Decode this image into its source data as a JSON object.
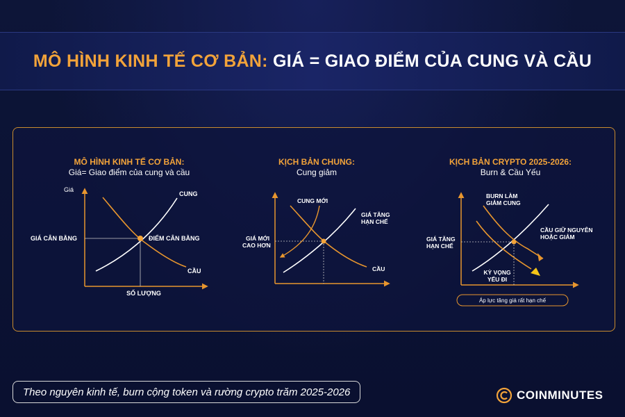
{
  "header": {
    "title_part1": "MÔ HÌNH KINH TẾ CƠ BẢN:",
    "title_part2": "GIÁ = GIAO ĐIỂM CỦA CUNG VÀ CẦU"
  },
  "diagram1": {
    "heading": "MÔ HÌNH KINH TẾ CƠ BẢN:",
    "subheading": "Giá= Giao điểm của cung và cầu",
    "y_axis_label": "Giá",
    "x_axis_label": "SỐ LƯỢNG",
    "supply_label": "CUNG",
    "demand_label": "CẦU",
    "price_label": "GIÁ CÂN BẰNG",
    "equilibrium_label": "ĐIỂM CÂN BẰNG"
  },
  "diagram2": {
    "heading": "KỊCH BẢN CHUNG:",
    "subheading": "Cung giảm",
    "new_supply_label": "CUNG MỚI",
    "price_up_line1": "GIÁ TĂNG",
    "price_up_line2": "HẠN CHẾ",
    "new_price_line1": "GIÁ MỚI",
    "new_price_line2": "CAO HƠN",
    "demand_label": "CẦU"
  },
  "diagram3": {
    "heading": "KỊCH BẢN CRYPTO 2025-2026:",
    "subheading": "Burn & Cầu Yếu",
    "burn_line1": "BURN LÀM",
    "burn_line2": "GIẢM CUNG",
    "demand_line1": "CẦU GIỮ NGUYÊN",
    "demand_line2": "HOẶC GIẢM",
    "price_line1": "GIÁ TĂNG",
    "price_line2": "HẠN CHẾ",
    "expect_line1": "KỲ VỌNG",
    "expect_line2": "YẾU ĐI",
    "pressure_label": "Áp lực tăng giá rất hạn chế"
  },
  "footer": {
    "note": "Theo nguyên kinh tế, burn cộng token và rường crypto trăm 2025-2026",
    "logo_text": "COINMINUTES"
  },
  "colors": {
    "accent": "#f2a33a",
    "curve_orange": "#e8962e",
    "curve_white": "#ffffff",
    "arrow_yellow": "#f5c518",
    "background": "#0b1230"
  }
}
